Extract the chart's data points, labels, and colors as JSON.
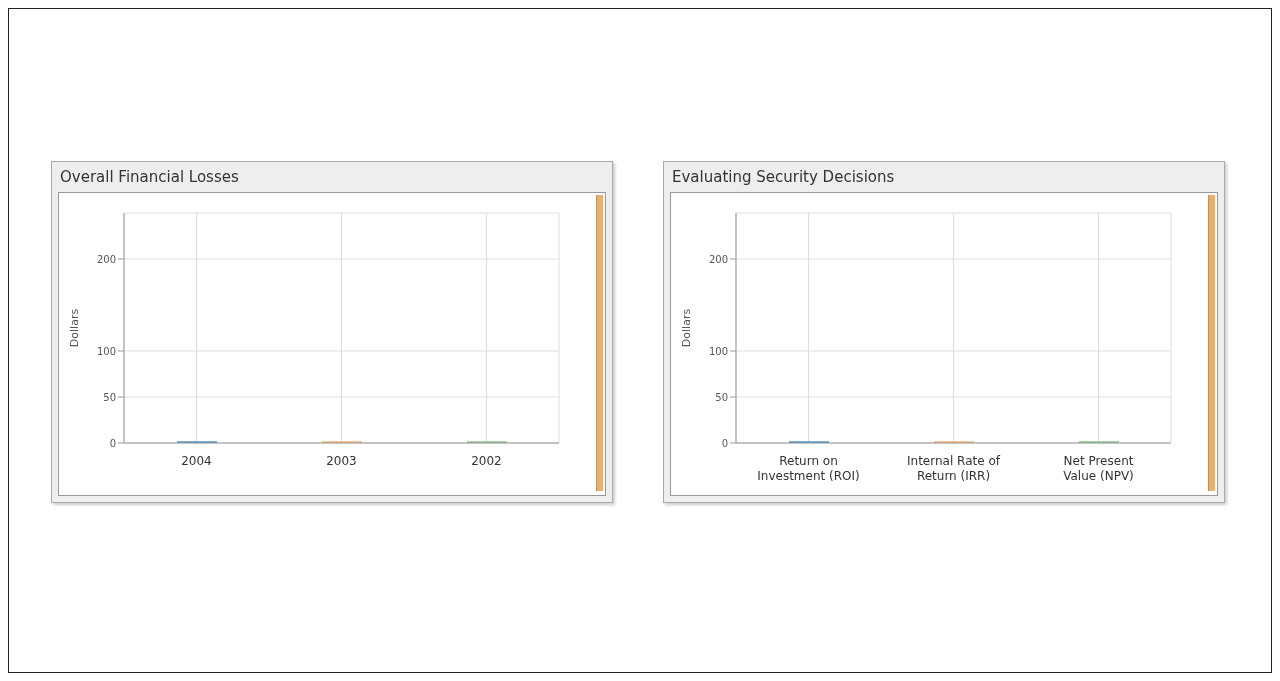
{
  "chart_data": [
    {
      "type": "bar",
      "title": "Overall Financial Losses",
      "ylabel": "Dollars",
      "categories": [
        "2004",
        "2003",
        "2002"
      ],
      "values": [
        2,
        2,
        2
      ],
      "colors": [
        "#4f93c1",
        "#f0b27a",
        "#8cc58c"
      ],
      "ylim": [
        0,
        250
      ],
      "yticks": [
        0,
        50,
        100,
        200
      ],
      "grid": true
    },
    {
      "type": "bar",
      "title": "Evaluating Security Decisions",
      "ylabel": "Dollars",
      "categories": [
        "Return on Investment (ROI)",
        "Internal Rate of Return (IRR)",
        "Net Present Value (NPV)"
      ],
      "values": [
        2,
        2,
        2
      ],
      "colors": [
        "#4f93c1",
        "#f0b27a",
        "#8cc58c"
      ],
      "ylim": [
        0,
        250
      ],
      "yticks": [
        0,
        50,
        100,
        200
      ],
      "grid": true
    }
  ]
}
